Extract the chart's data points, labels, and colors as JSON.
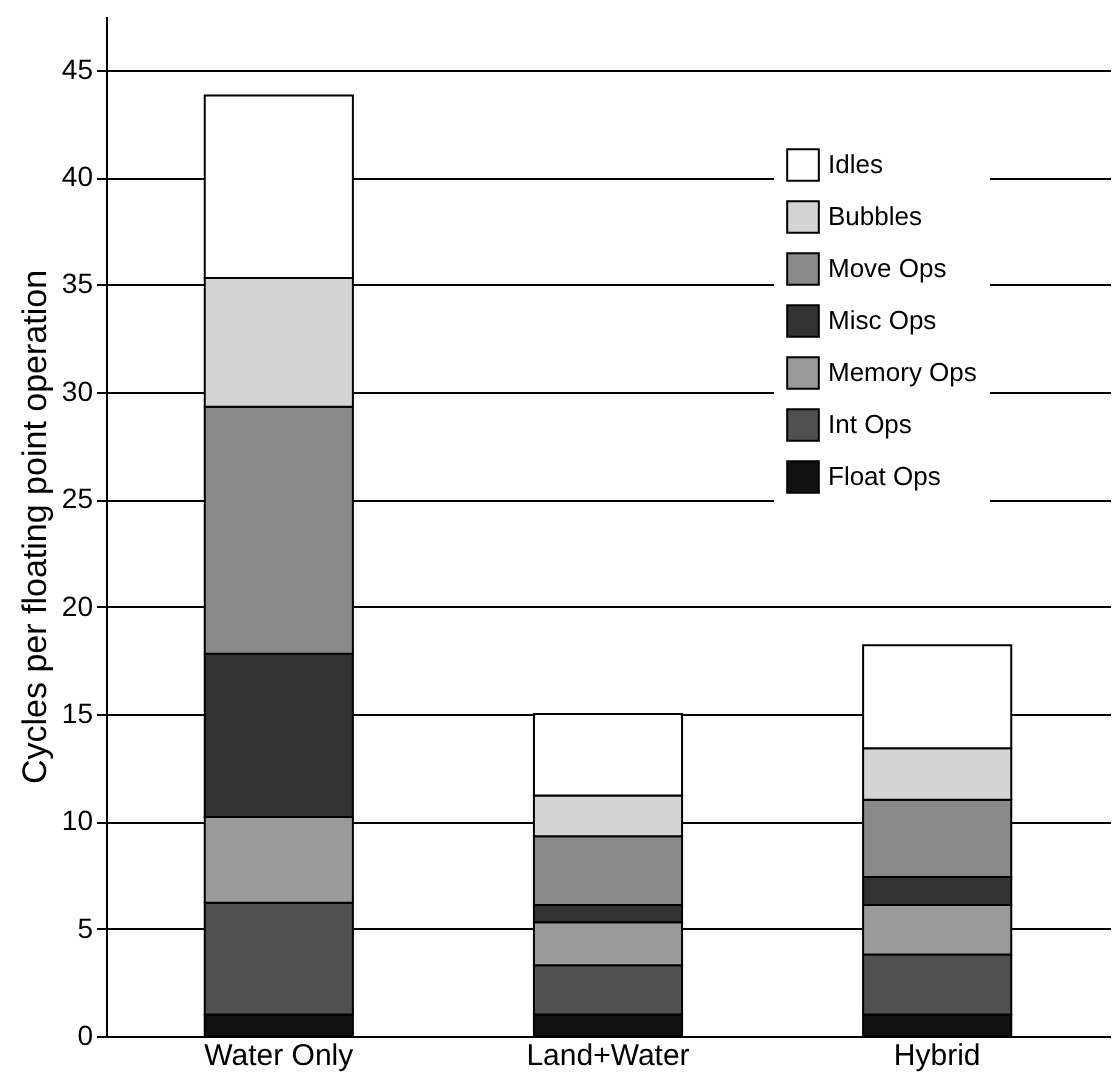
{
  "chart_data": {
    "type": "bar",
    "stacked": true,
    "ylabel": "Cycles per floating point operation",
    "categories": [
      "Water Only",
      "Land+Water",
      "Hybrid"
    ],
    "series": [
      {
        "name": "Float Ops",
        "color": "#111111",
        "values": [
          1.0,
          1.0,
          1.0
        ]
      },
      {
        "name": "Int Ops",
        "color": "#505050",
        "values": [
          5.2,
          2.3,
          2.8
        ]
      },
      {
        "name": "Memory Ops",
        "color": "#9a9a9a",
        "values": [
          4.0,
          2.0,
          2.3
        ]
      },
      {
        "name": "Misc Ops",
        "color": "#333333",
        "values": [
          7.6,
          0.8,
          1.3
        ]
      },
      {
        "name": "Move Ops",
        "color": "#8a8a8a",
        "values": [
          11.5,
          3.2,
          3.6
        ]
      },
      {
        "name": "Bubbles",
        "color": "#d4d4d4",
        "values": [
          6.0,
          1.9,
          2.4
        ]
      },
      {
        "name": "Idles",
        "color": "#ffffff",
        "values": [
          8.5,
          3.8,
          4.8
        ]
      }
    ],
    "ylim": [
      0,
      47.5
    ],
    "yticks": [
      0,
      5,
      10,
      15,
      20,
      25,
      30,
      35,
      40,
      45
    ],
    "grid": "y",
    "legend": "top right"
  }
}
